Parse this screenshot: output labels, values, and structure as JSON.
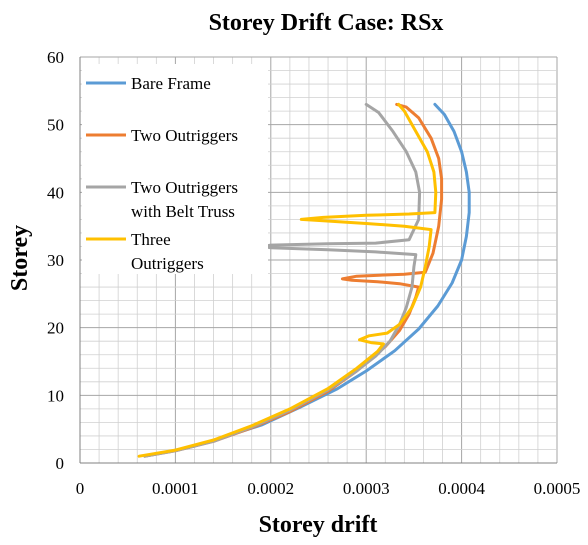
{
  "chart_data": {
    "type": "line",
    "title": "Storey Drift Case: RSx",
    "xlabel": "Storey drift",
    "ylabel": "Storey",
    "xlim": [
      0,
      0.0005
    ],
    "ylim": [
      0,
      60
    ],
    "x_ticks": [
      "0",
      "0.0001",
      "0.0002",
      "0.0003",
      "0.0004",
      "0.0005"
    ],
    "y_ticks": [
      "0",
      "10",
      "20",
      "30",
      "40",
      "50",
      "60"
    ],
    "grid": true,
    "legend_position": "top-left",
    "series": [
      {
        "name": "Bare Frame",
        "color": "#5b9bd5",
        "points": [
          [
            6.8e-05,
            1
          ],
          [
            9e-05,
            1.6
          ],
          [
            0.00012,
            2.5
          ],
          [
            0.00015,
            3.8
          ],
          [
            0.00019,
            5.6
          ],
          [
            0.00023,
            8.2
          ],
          [
            0.00027,
            11
          ],
          [
            0.0003,
            13.6
          ],
          [
            0.00033,
            16.6
          ],
          [
            0.000355,
            19.8
          ],
          [
            0.000375,
            23.2
          ],
          [
            0.00039,
            26.6
          ],
          [
            0.0004,
            30
          ],
          [
            0.000405,
            33.5
          ],
          [
            0.000408,
            37
          ],
          [
            0.000408,
            40
          ],
          [
            0.000405,
            43
          ],
          [
            0.0004,
            46
          ],
          [
            0.000392,
            49
          ],
          [
            0.000382,
            51.5
          ],
          [
            0.000372,
            53
          ]
        ]
      },
      {
        "name": "Two Outriggers",
        "color": "#ed7d31",
        "points": [
          [
            6.8e-05,
            1
          ],
          [
            0.0001,
            1.8
          ],
          [
            0.00014,
            3.2
          ],
          [
            0.00018,
            5.2
          ],
          [
            0.00022,
            7.6
          ],
          [
            0.00026,
            10.6
          ],
          [
            0.00029,
            13.6
          ],
          [
            0.00032,
            17.2
          ],
          [
            0.000335,
            19.6
          ],
          [
            0.000345,
            22
          ],
          [
            0.000352,
            24.5
          ],
          [
            0.000355,
            26
          ],
          [
            0.000335,
            26.5
          ],
          [
            0.000312,
            26.8
          ],
          [
            0.000285,
            27
          ],
          [
            0.000275,
            27.2
          ],
          [
            0.00029,
            27.6
          ],
          [
            0.00034,
            27.9
          ],
          [
            0.000362,
            28.2
          ],
          [
            0.00037,
            31
          ],
          [
            0.000376,
            35
          ],
          [
            0.000379,
            39
          ],
          [
            0.000379,
            42
          ],
          [
            0.000376,
            45
          ],
          [
            0.000368,
            48
          ],
          [
            0.000355,
            51
          ],
          [
            0.000342,
            52.6
          ],
          [
            0.000332,
            53
          ]
        ]
      },
      {
        "name": "Two Outriggers with Belt Truss",
        "color": "#a5a5a5",
        "points": [
          [
            6.8e-05,
            1
          ],
          [
            0.0001,
            1.8
          ],
          [
            0.00014,
            3.2
          ],
          [
            0.00018,
            5.3
          ],
          [
            0.00022,
            7.8
          ],
          [
            0.00026,
            10.8
          ],
          [
            0.00029,
            13.6
          ],
          [
            0.00031,
            15.8
          ],
          [
            0.000325,
            18
          ],
          [
            0.000335,
            20.5
          ],
          [
            0.000342,
            23
          ],
          [
            0.000348,
            26
          ],
          [
            0.00035,
            29
          ],
          [
            0.000352,
            30.8
          ],
          [
            0.00031,
            31.2
          ],
          [
            0.00026,
            31.5
          ],
          [
            0.0002,
            31.8
          ],
          [
            0.000193,
            32
          ],
          [
            0.0002,
            32.2
          ],
          [
            0.00026,
            32.4
          ],
          [
            0.00031,
            32.5
          ],
          [
            0.000345,
            33
          ],
          [
            0.000355,
            36
          ],
          [
            0.000356,
            40
          ],
          [
            0.000352,
            43
          ],
          [
            0.000342,
            46
          ],
          [
            0.000328,
            49
          ],
          [
            0.000313,
            51.8
          ],
          [
            0.0003,
            53
          ]
        ]
      },
      {
        "name": "Three Outriggers",
        "color": "#ffc000",
        "points": [
          [
            6.2e-05,
            1
          ],
          [
            0.0001,
            1.9
          ],
          [
            0.00014,
            3.4
          ],
          [
            0.00018,
            5.5
          ],
          [
            0.00022,
            8
          ],
          [
            0.00026,
            11
          ],
          [
            0.00029,
            14
          ],
          [
            0.000312,
            16.5
          ],
          [
            0.000318,
            17.6
          ],
          [
            0.000305,
            17.8
          ],
          [
            0.000293,
            18.2
          ],
          [
            0.000303,
            18.8
          ],
          [
            0.000322,
            19.2
          ],
          [
            0.000335,
            20.5
          ],
          [
            0.000348,
            23
          ],
          [
            0.000357,
            26
          ],
          [
            0.000362,
            29
          ],
          [
            0.000366,
            32
          ],
          [
            0.000368,
            34.5
          ],
          [
            0.00034,
            35
          ],
          [
            0.0003,
            35.4
          ],
          [
            0.000255,
            35.8
          ],
          [
            0.000232,
            36
          ],
          [
            0.000255,
            36.3
          ],
          [
            0.0003,
            36.6
          ],
          [
            0.000345,
            36.8
          ],
          [
            0.000372,
            37
          ],
          [
            0.000373,
            40
          ],
          [
            0.000371,
            43
          ],
          [
            0.000364,
            46
          ],
          [
            0.000352,
            49
          ],
          [
            0.00034,
            52
          ],
          [
            0.000334,
            53
          ]
        ]
      }
    ],
    "legend": [
      {
        "lines": [
          "Bare Frame"
        ]
      },
      {
        "lines": [
          "Two Outriggers"
        ]
      },
      {
        "lines": [
          "Two Outriggers",
          "with Belt Truss"
        ]
      },
      {
        "lines": [
          "Three",
          "Outriggers"
        ]
      }
    ]
  }
}
